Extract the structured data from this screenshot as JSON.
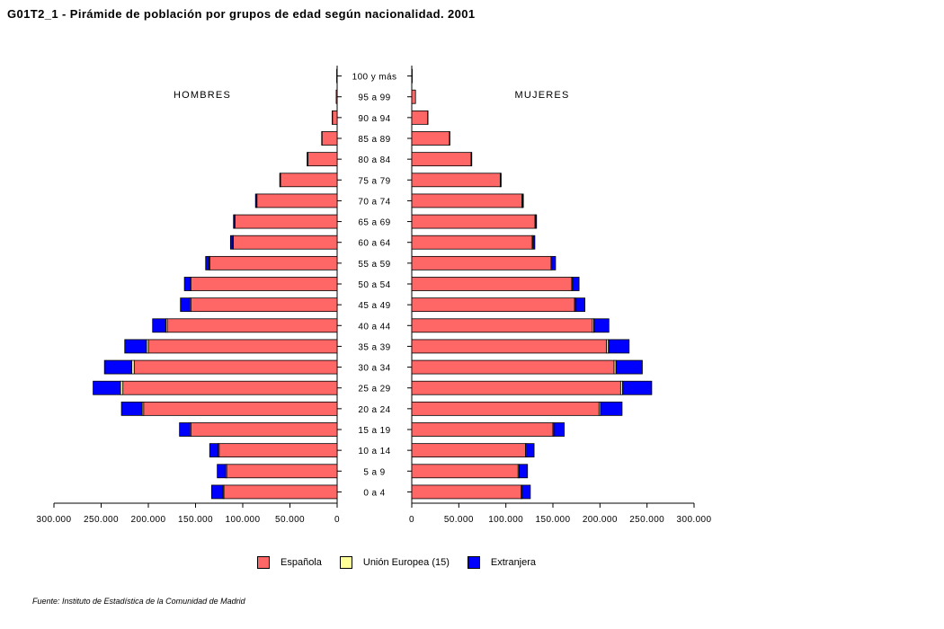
{
  "title": "G01T2_1 - Pirámide de población por grupos de edad según nacionalidad.  2001",
  "source": "Fuente: Instituto de Estadística de la Comunidad de Madrid",
  "colors": {
    "espanola": "#ff6666",
    "union_europea": "#ffff99",
    "extranjera": "#0000ff"
  },
  "chart_data": {
    "type": "bar",
    "orientation": "horizontal",
    "sides": {
      "left": "HOMBRES",
      "right": "MUJERES"
    },
    "categories": [
      "0 a 4",
      "5 a 9",
      "10 a 14",
      "15 a 19",
      "20 a 24",
      "25 a 29",
      "30 a 34",
      "35 a 39",
      "40 a 44",
      "45 a 49",
      "50 a 54",
      "55 a 59",
      "60 a 64",
      "65 a 69",
      "70 a 74",
      "75 a 79",
      "80 a 84",
      "85 a 89",
      "90 a 94",
      "95 a 99",
      "100 y más"
    ],
    "x_ticks_left": [
      "300.000",
      "250.000",
      "200.000",
      "150.000",
      "100.000",
      "50.000",
      "0"
    ],
    "x_ticks_right": [
      "0",
      "50.000",
      "100.000",
      "150.000",
      "200.000",
      "250.000",
      "300.000"
    ],
    "xlim": [
      0,
      300000
    ],
    "legend": [
      "Española",
      "Unión Europea (15)",
      "Extranjera"
    ],
    "legend_position": "bottom",
    "hombres": {
      "espanola": [
        120000,
        117000,
        125000,
        155000,
        205000,
        227000,
        215000,
        200000,
        180000,
        155000,
        155000,
        135000,
        110000,
        108000,
        85000,
        60000,
        31000,
        16000,
        5000,
        1000,
        500
      ],
      "union_europea": [
        1000,
        1000,
        1000,
        1000,
        1500,
        2500,
        2500,
        2000,
        1500,
        1000,
        800,
        800,
        500,
        800,
        500,
        300,
        300,
        200,
        100,
        0,
        0
      ],
      "extranjera": [
        12000,
        9000,
        9000,
        11000,
        22000,
        29000,
        29000,
        23000,
        14000,
        10000,
        6000,
        3500,
        2500,
        1000,
        1000,
        500,
        500,
        200,
        100,
        0,
        0
      ]
    },
    "mujeres": {
      "espanola": [
        116000,
        113000,
        121000,
        150000,
        199000,
        222000,
        215000,
        207000,
        192000,
        173000,
        170000,
        148000,
        128000,
        131000,
        117000,
        94000,
        63000,
        40000,
        17000,
        4000,
        500
      ],
      "union_europea": [
        1000,
        1000,
        1000,
        1000,
        1500,
        2000,
        2000,
        2000,
        1500,
        1000,
        800,
        800,
        800,
        800,
        800,
        500,
        500,
        300,
        100,
        0,
        0
      ],
      "extranjera": [
        9000,
        9000,
        8000,
        11000,
        23000,
        31000,
        28000,
        22000,
        16000,
        10000,
        7000,
        4000,
        2000,
        800,
        800,
        500,
        300,
        200,
        100,
        0,
        0
      ]
    }
  }
}
